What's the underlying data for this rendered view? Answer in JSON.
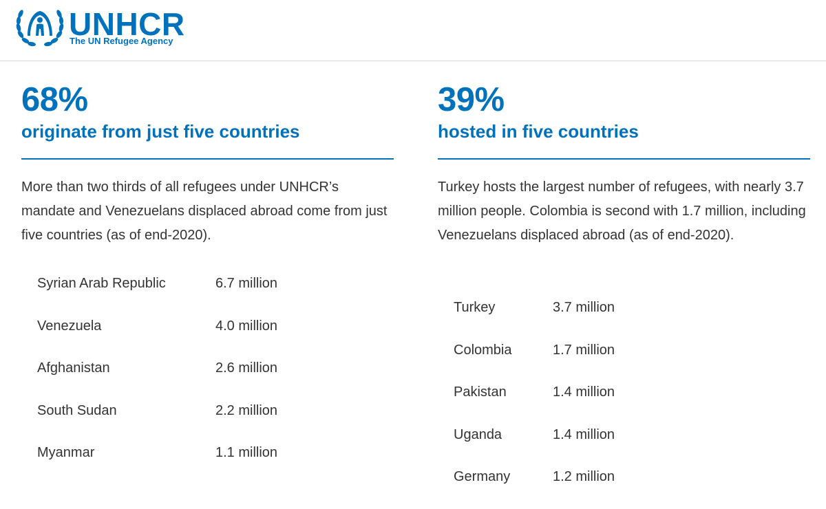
{
  "header": {
    "logo_word": "UNHCR",
    "logo_tagline": "The UN Refugee Agency",
    "brand_color": "#0072bc"
  },
  "left": {
    "stat": "68%",
    "subtitle": "originate from just five countries",
    "description": "More than two thirds of all refugees under UNHCR’s mandate and Venezuelans displaced abroad come from just five countries (as of end-2020).",
    "rows": [
      {
        "country": "Syrian Arab Republic",
        "value": "6.7 million"
      },
      {
        "country": "Venezuela",
        "value": "4.0 million"
      },
      {
        "country": "Afghanistan",
        "value": "2.6 million"
      },
      {
        "country": "South Sudan",
        "value": "2.2 million"
      },
      {
        "country": "Myanmar",
        "value": "1.1 million"
      }
    ]
  },
  "right": {
    "stat": "39%",
    "subtitle": "hosted in five countries",
    "description": "Turkey hosts the largest number of refugees, with nearly 3.7 million people. Colombia is second with 1.7 million, including Venezuelans displaced abroad (as of end-2020).",
    "rows": [
      {
        "country": "Turkey",
        "value": "3.7 million"
      },
      {
        "country": "Colombia",
        "value": "1.7 million"
      },
      {
        "country": "Pakistan",
        "value": "1.4 million"
      },
      {
        "country": "Uganda",
        "value": "1.4 million"
      },
      {
        "country": "Germany",
        "value": "1.2 million"
      }
    ]
  }
}
